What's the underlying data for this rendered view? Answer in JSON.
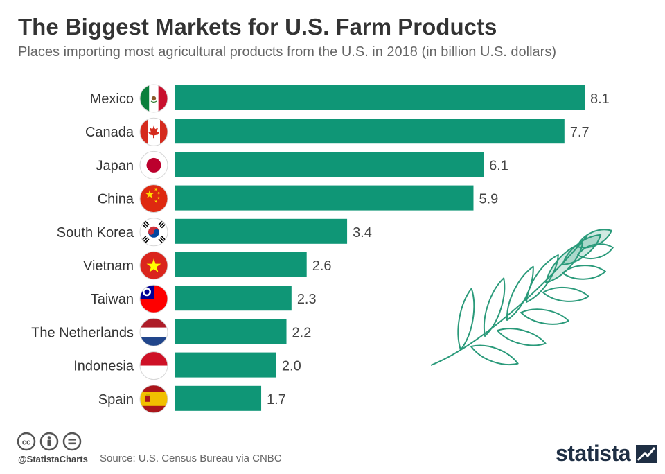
{
  "header": {
    "title": "The Biggest Markets for U.S. Farm Products",
    "subtitle": "Places importing most agricultural products from the U.S. in 2018 (in billion U.S. dollars)"
  },
  "chart_data": {
    "type": "bar",
    "orientation": "horizontal",
    "categories": [
      "Mexico",
      "Canada",
      "Japan",
      "China",
      "South Korea",
      "Vietnam",
      "Taiwan",
      "The Netherlands",
      "Indonesia",
      "Spain"
    ],
    "values": [
      8.1,
      7.7,
      6.1,
      5.9,
      3.4,
      2.6,
      2.3,
      2.2,
      2.0,
      1.7
    ],
    "value_labels": [
      "8.1",
      "7.7",
      "6.1",
      "5.9",
      "3.4",
      "2.6",
      "2.3",
      "2.2",
      "2.0",
      "1.7"
    ],
    "flag_icons": [
      "mexico-flag-icon",
      "canada-flag-icon",
      "japan-flag-icon",
      "china-flag-icon",
      "south-korea-flag-icon",
      "vietnam-flag-icon",
      "taiwan-flag-icon",
      "netherlands-flag-icon",
      "indonesia-flag-icon",
      "spain-flag-icon"
    ],
    "xlim": [
      0,
      8.1
    ],
    "grid": false,
    "bar_color": "#0f9676"
  },
  "decoration": {
    "icon": "wheat-branch-icon",
    "color": "#2a9a7a"
  },
  "footer": {
    "license_icons": [
      "cc-icon",
      "by-icon",
      "nd-icon"
    ],
    "handle": "@StatistaCharts",
    "source": "Source: U.S. Census Bureau via CNBC",
    "brand": "statista",
    "brand_color": "#1f2f44"
  }
}
